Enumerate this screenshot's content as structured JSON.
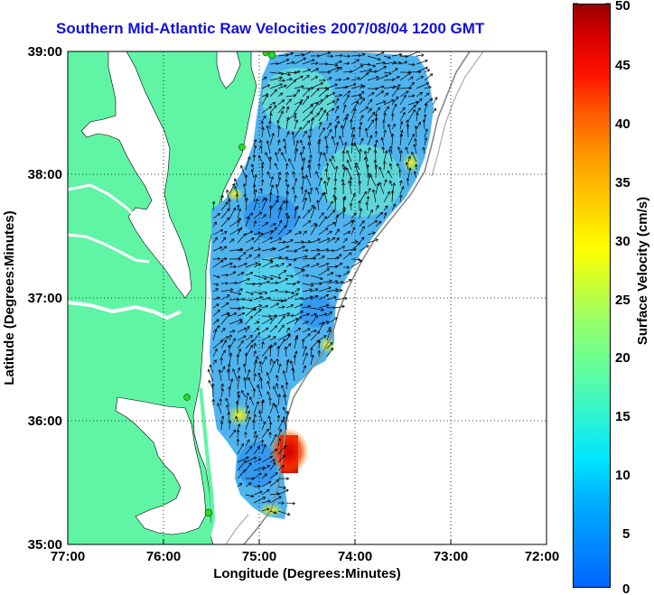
{
  "title": "Southern Mid-Atlantic Raw Velocities 2007/08/04 1200 GMT",
  "axes": {
    "xlabel": "Longitude (Degrees:Minutes)",
    "ylabel": "Latitude (Degrees:Minutes)",
    "x_ticks": [
      "77:00",
      "76:00",
      "75:00",
      "74:00",
      "73:00",
      "72:00"
    ],
    "y_ticks": [
      "39:00",
      "38:00",
      "37:00",
      "36:00",
      "35:00"
    ]
  },
  "colorbar": {
    "label": "Surface Velocity (cm/s)",
    "ticks": [
      "50",
      "45",
      "40",
      "35",
      "30",
      "25",
      "20",
      "15",
      "10",
      "5",
      "0"
    ],
    "min": 0,
    "max": 50
  },
  "colors": {
    "land": "#5ff5a5",
    "water": "#ffffff",
    "title": "#1010e0",
    "velocity_field": "#55aaee",
    "stations": "#22dd22"
  }
}
